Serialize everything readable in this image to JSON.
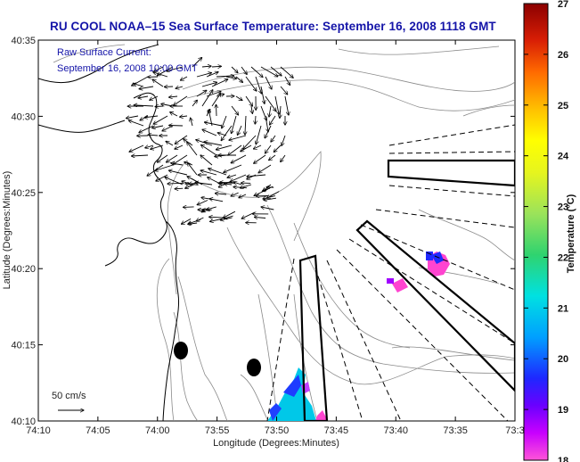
{
  "title": "RU COOL  NOAA–15  Sea Surface Temperature:  September 16, 2008 1118 GMT",
  "current_label": "Raw Surface Current:",
  "current_time": "September 16, 2008 10:00 GMT",
  "scale_label": "50 cm/s",
  "axes": {
    "xlabel": "Longitude (Degrees:Minutes)",
    "ylabel": "Latitude (Degrees:Minutes)",
    "xticks": [
      "74:10",
      "74:05",
      "74:00",
      "73:55",
      "73:50",
      "73:45",
      "73:40",
      "73:35",
      "73:3"
    ],
    "yticks": [
      "40:35",
      "40:30",
      "40:25",
      "40:20",
      "40:15",
      "40:10"
    ]
  },
  "colorbar": {
    "label": "Temperature (°C)",
    "ticks": [
      "27",
      "26",
      "25",
      "24",
      "23",
      "22",
      "21",
      "20",
      "19",
      "18"
    ],
    "colors": [
      "#8b0000",
      "#d81e05",
      "#ff6a00",
      "#ffbf00",
      "#ffff00",
      "#9be35a",
      "#2fd36f",
      "#00e1e1",
      "#00a0ff",
      "#1e28ff",
      "#a000ff",
      "#ff3cc8"
    ]
  },
  "map_features": {
    "coastline": "New Jersey / Long Island shoreline",
    "stations": [
      "station-a",
      "station-b"
    ]
  }
}
